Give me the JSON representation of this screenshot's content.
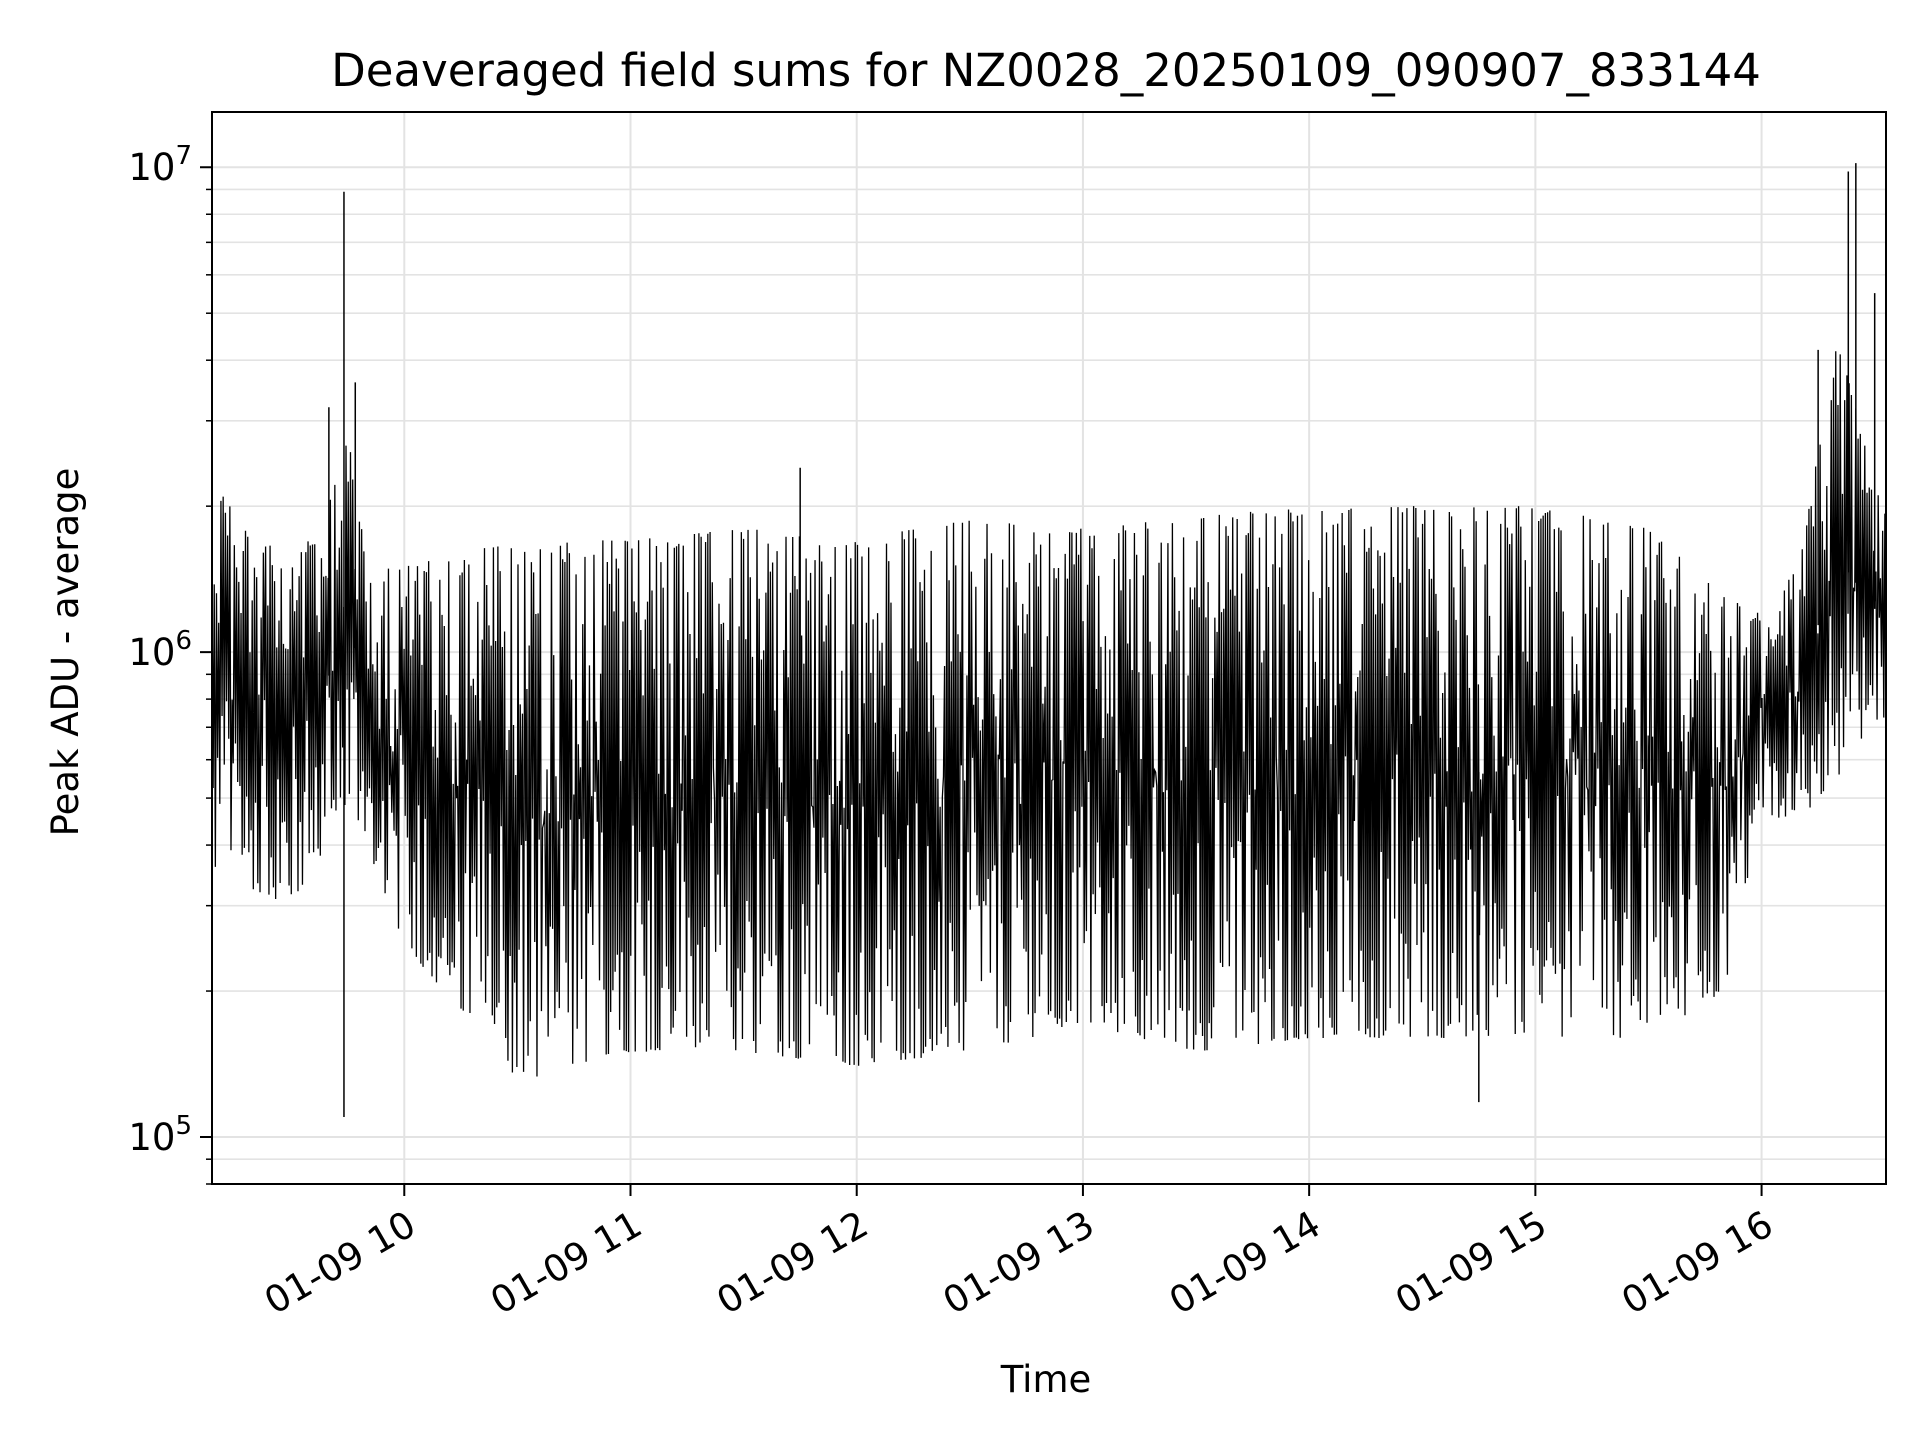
{
  "chart_data": {
    "type": "line",
    "title": "Deaveraged field sums for NZ0028_20250109_090907_833144",
    "xlabel": "Time",
    "ylabel": "Peak ADU - average",
    "y_scale": "log",
    "ylim": [
      80000,
      13000000
    ],
    "xlim": [
      "01-09 09:09",
      "01-09 16:33"
    ],
    "grid": true,
    "line_color": "#000000",
    "x_tick_labels": [
      "01-09 10",
      "01-09 11",
      "01-09 12",
      "01-09 13",
      "01-09 14",
      "01-09 15",
      "01-09 16"
    ],
    "x_tick_times": [
      "01-09 10:00",
      "01-09 11:00",
      "01-09 12:00",
      "01-09 13:00",
      "01-09 14:00",
      "01-09 15:00",
      "01-09 16:00"
    ],
    "y_ticks": [
      {
        "base": "10",
        "exp": "5",
        "value": 100000
      },
      {
        "base": "10",
        "exp": "6",
        "value": 1000000
      },
      {
        "base": "10",
        "exp": "7",
        "value": 10000000
      }
    ],
    "series": [
      {
        "values_approx": "rapidly oscillating signal, ~1500 samples; envelope by time below",
        "envelope": [
          {
            "time": "01-09 09:10",
            "low": 350000,
            "high": 2200000
          },
          {
            "time": "01-09 09:30",
            "low": 300000,
            "high": 1500000
          },
          {
            "time": "01-09 09:40",
            "low": 400000,
            "high": 2000000
          },
          {
            "time": "01-09 09:45",
            "low": 500000,
            "high": 3000000
          },
          {
            "time": "01-09 09:50",
            "low": 400000,
            "high": 1500000
          },
          {
            "time": "01-09 10:00",
            "low": 250000,
            "high": 1500000
          },
          {
            "time": "01-09 10:30",
            "low": 130000,
            "high": 1700000
          },
          {
            "time": "01-09 11:00",
            "low": 150000,
            "high": 1700000
          },
          {
            "time": "01-09 11:30",
            "low": 150000,
            "high": 1800000
          },
          {
            "time": "01-09 12:00",
            "low": 140000,
            "high": 1700000
          },
          {
            "time": "01-09 12:30",
            "low": 150000,
            "high": 1900000
          },
          {
            "time": "01-09 13:00",
            "low": 170000,
            "high": 1800000
          },
          {
            "time": "01-09 13:30",
            "low": 150000,
            "high": 1900000
          },
          {
            "time": "01-09 14:00",
            "low": 160000,
            "high": 2000000
          },
          {
            "time": "01-09 14:30",
            "low": 160000,
            "high": 2000000
          },
          {
            "time": "01-09 15:00",
            "low": 160000,
            "high": 2000000
          },
          {
            "time": "01-09 15:30",
            "low": 160000,
            "high": 1800000
          },
          {
            "time": "01-09 15:50",
            "low": 200000,
            "high": 1300000
          },
          {
            "time": "01-09 16:00",
            "low": 450000,
            "high": 1200000
          },
          {
            "time": "01-09 16:10",
            "low": 450000,
            "high": 1500000
          },
          {
            "time": "01-09 16:20",
            "low": 550000,
            "high": 4500000
          },
          {
            "time": "01-09 16:33",
            "low": 650000,
            "high": 2000000
          }
        ],
        "spikes": [
          {
            "time": "01-09 09:44",
            "value": 8900000
          },
          {
            "time": "01-09 09:44",
            "value": 110000
          },
          {
            "time": "01-09 09:40",
            "value": 3200000
          },
          {
            "time": "01-09 09:47",
            "value": 3600000
          },
          {
            "time": "01-09 11:45",
            "value": 2400000
          },
          {
            "time": "01-09 14:45",
            "value": 118000
          },
          {
            "time": "01-09 16:15",
            "value": 4200000
          },
          {
            "time": "01-09 16:25",
            "value": 10200000
          },
          {
            "time": "01-09 16:23",
            "value": 9800000
          },
          {
            "time": "01-09 16:30",
            "value": 5500000
          }
        ]
      }
    ]
  }
}
